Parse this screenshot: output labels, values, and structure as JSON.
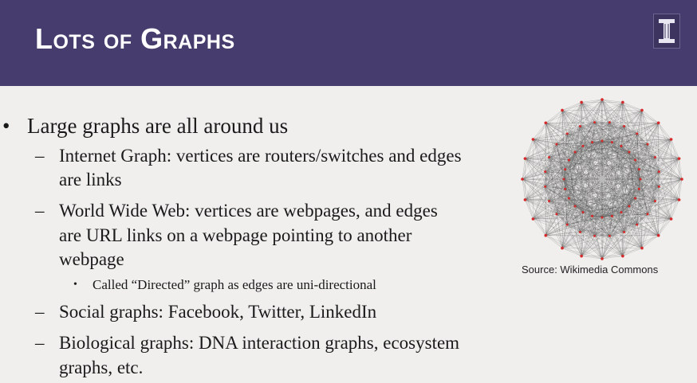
{
  "slide": {
    "title": "Lots of Graphs",
    "bullet_main": "Large graphs are all around us",
    "items": [
      {
        "line1": "Internet Graph: vertices are routers/switches and edges",
        "line2": "are links"
      },
      {
        "line1": "World Wide Web: vertices are webpages, and edges",
        "line2": "are URL links on a webpage pointing to another",
        "line3": "webpage"
      },
      {
        "line1": "Social graphs: Facebook, Twitter, LinkedIn"
      },
      {
        "line1": "Biological graphs: DNA interaction graphs, ecosystem",
        "line2": "graphs, etc."
      }
    ],
    "sub_bullet": "Called “Directed” graph as edges are uni-directional",
    "image_caption": "Source: Wikimedia Commons",
    "bullet_glyph": "•",
    "dash_glyph": "–",
    "small_bullet_glyph": "•"
  },
  "colors": {
    "header": "#463d6e",
    "background": "#f0efee",
    "vertex": "#d62a2a",
    "edge": "#555555"
  },
  "icons": {
    "logo": "university-block-i-logo"
  }
}
